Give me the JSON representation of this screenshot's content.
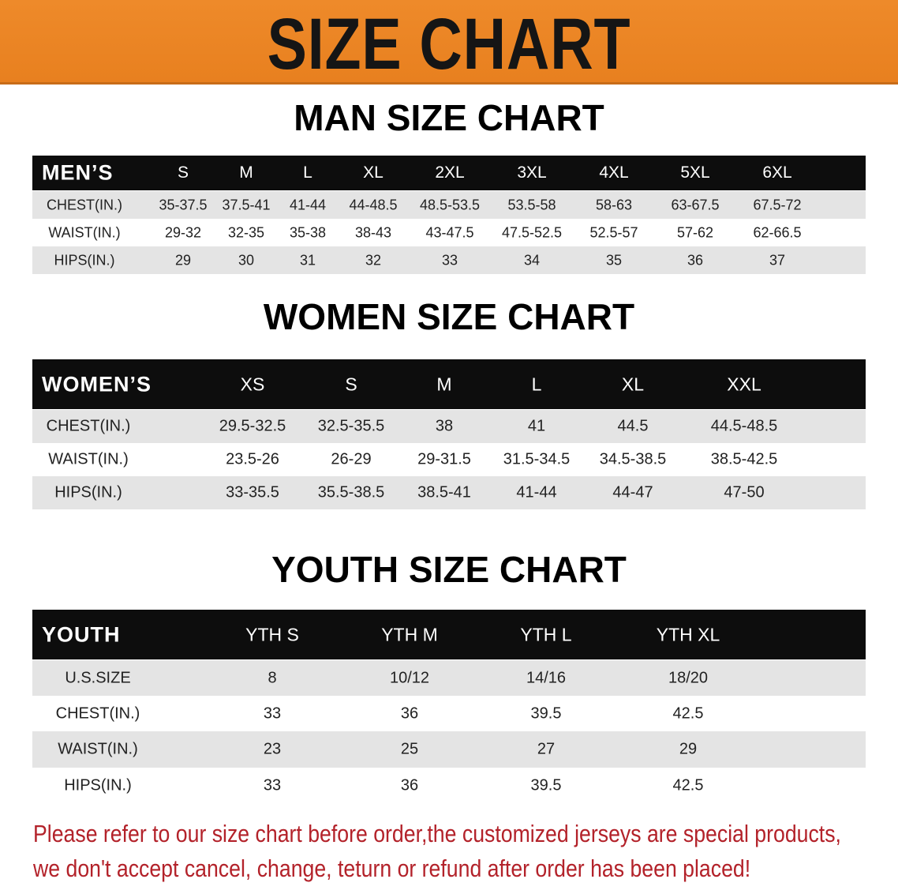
{
  "banner": {
    "title": "SIZE CHART",
    "color": "#e8801f"
  },
  "men": {
    "title": "MAN SIZE CHART",
    "headers": [
      "MEN’S",
      "S",
      "M",
      "L",
      "XL",
      "2XL",
      "3XL",
      "4XL",
      "5XL",
      "6XL"
    ],
    "rows": [
      [
        "CHEST(IN.)",
        "35-37.5",
        "37.5-41",
        "41-44",
        "44-48.5",
        "48.5-53.5",
        "53.5-58",
        "58-63",
        "63-67.5",
        "67.5-72"
      ],
      [
        "WAIST(IN.)",
        "29-32",
        "32-35",
        "35-38",
        "38-43",
        "43-47.5",
        "47.5-52.5",
        "52.5-57",
        "57-62",
        "62-66.5"
      ],
      [
        "HIPS(IN.)",
        "29",
        "30",
        "31",
        "32",
        "33",
        "34",
        "35",
        "36",
        "37"
      ]
    ]
  },
  "women": {
    "title": "WOMEN SIZE CHART",
    "headers": [
      "WOMEN’S",
      "XS",
      "S",
      "M",
      "L",
      "XL",
      "XXL"
    ],
    "rows": [
      [
        "CHEST(IN.)",
        "29.5-32.5",
        "32.5-35.5",
        "38",
        "41",
        "44.5",
        "44.5-48.5"
      ],
      [
        "WAIST(IN.)",
        "23.5-26",
        "26-29",
        "29-31.5",
        "31.5-34.5",
        "34.5-38.5",
        "38.5-42.5"
      ],
      [
        "HIPS(IN.)",
        "33-35.5",
        "35.5-38.5",
        "38.5-41",
        "41-44",
        "44-47",
        "47-50"
      ]
    ]
  },
  "youth": {
    "title": "YOUTH SIZE CHART",
    "headers": [
      "YOUTH",
      "YTH S",
      "YTH M",
      "YTH L",
      "YTH XL"
    ],
    "rows": [
      [
        "U.S.SIZE",
        "8",
        "10/12",
        "14/16",
        "18/20"
      ],
      [
        "CHEST(IN.)",
        "33",
        "36",
        "39.5",
        "42.5"
      ],
      [
        "WAIST(IN.)",
        "23",
        "25",
        "27",
        "29"
      ],
      [
        "HIPS(IN.)",
        "33",
        "36",
        "39.5",
        "42.5"
      ]
    ]
  },
  "notice": {
    "line1": "Please refer to our size chart before order,the customized jerseys are special products,",
    "line2": "we don't accept cancel, change, teturn or refund after order has been placed!",
    "color": "#b3222a"
  }
}
